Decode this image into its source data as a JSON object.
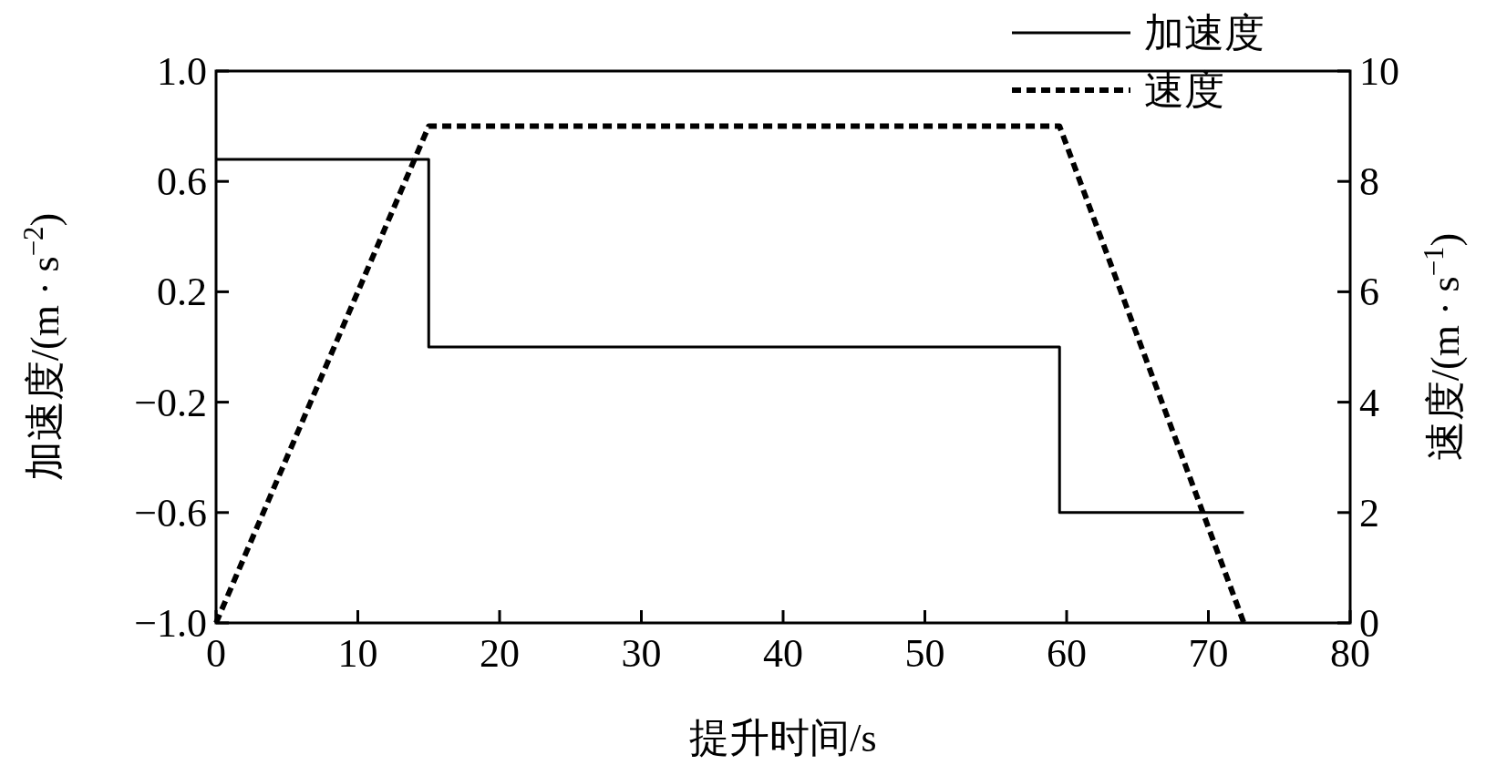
{
  "chart_data": {
    "type": "line",
    "xlabel": "提升时间/s",
    "ylabel": "加速度/(m · s$^{−2}$)",
    "y2label": "速度/(m · s$^{−1}$)",
    "xlim": [
      0,
      80
    ],
    "xticks": [
      0,
      10,
      20,
      30,
      40,
      50,
      60,
      70,
      80
    ],
    "ylim": [
      -1.0,
      1.0
    ],
    "yticks": [
      {
        "value": -1.0,
        "label": "−1.0"
      },
      {
        "value": -0.6,
        "label": "−0.6"
      },
      {
        "value": -0.2,
        "label": "−0.2"
      },
      {
        "value": 0.2,
        "label": "0.2"
      },
      {
        "value": 0.6,
        "label": "0.6"
      },
      {
        "value": 1.0,
        "label": "1.0"
      }
    ],
    "y2lim": [
      0,
      10
    ],
    "y2ticks": [
      0,
      2,
      4,
      6,
      8,
      10
    ],
    "grid": false,
    "legend": "top right",
    "series": [
      {
        "name": "加速度",
        "color": "#000000",
        "line_style": "solid",
        "type": "step",
        "x": [
          0,
          15,
          15,
          59.5,
          59.5,
          72.5
        ],
        "values": [
          0.68,
          0.68,
          0,
          0,
          -0.6,
          -0.6
        ]
      },
      {
        "name": "速度",
        "color": "#000000",
        "line_style": "dashed",
        "axis": "y2",
        "x": [
          0,
          15,
          59.5,
          72.5
        ],
        "values": [
          0,
          9,
          9,
          0
        ]
      }
    ]
  }
}
